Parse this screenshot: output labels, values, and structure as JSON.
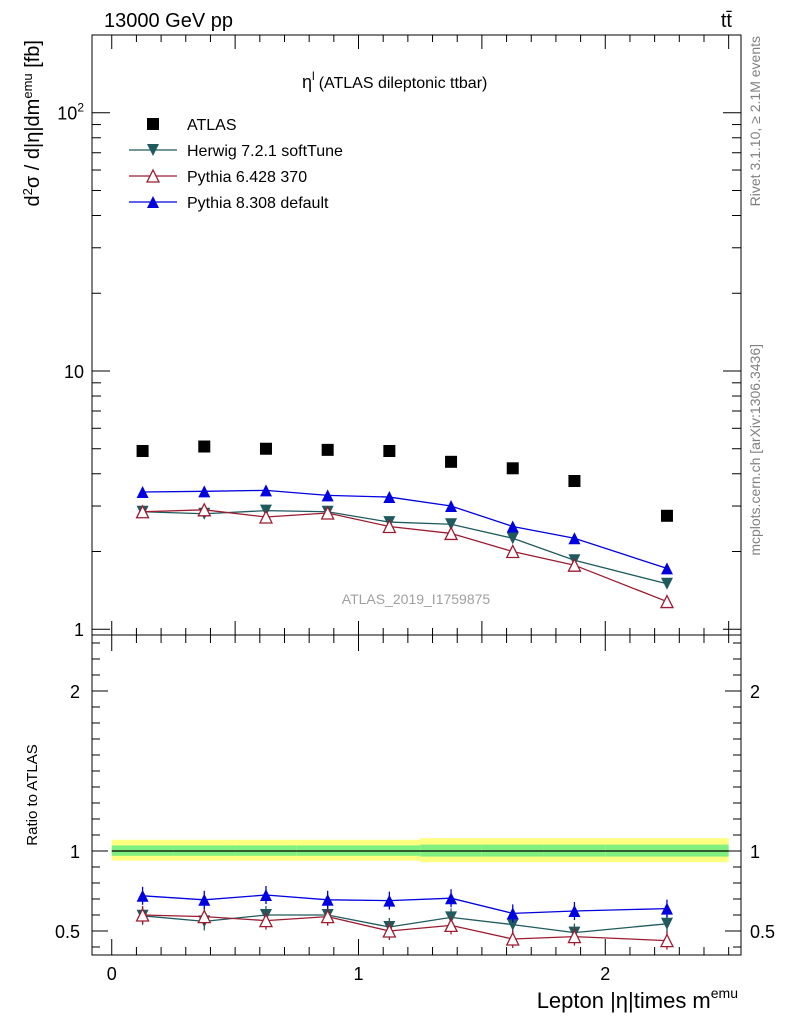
{
  "header": {
    "left": "13000 GeV pp",
    "right": "tt̄"
  },
  "side_labels": {
    "top": "Rivet 3.1.10, ≥ 2.1M events",
    "bottom": "mcplots.cern.ch [arXiv:1306.3436]"
  },
  "watermark": "ATLAS_2019_I1759875",
  "colors": {
    "data": "#000000",
    "herwig": "#1f5a5e",
    "pythia6": "#9b1c31",
    "pythia8": "#0000e0",
    "band_outer": "#ffff80",
    "band_inner": "#7ff07f"
  },
  "chart_data": [
    {
      "type": "line",
      "title": "η^l (ATLAS dileptonic ttbar)",
      "title_main": "η",
      "title_sup": "l",
      "title_rest": "(ATLAS dileptonic ttbar)",
      "ylabel": "d²σ / d|η|dm^emu [fb]",
      "yscale": "log",
      "ylim": [
        0.95,
        200
      ],
      "xlim": [
        -0.08,
        2.55
      ],
      "ytick_labels": [
        "1",
        "10",
        "10²"
      ],
      "x": [
        0.125,
        0.375,
        0.625,
        0.875,
        1.125,
        1.375,
        1.625,
        1.875,
        2.25
      ],
      "series": [
        {
          "name": "ATLAS",
          "style": "data",
          "values": [
            4.9,
            5.1,
            5.0,
            4.95,
            4.9,
            4.45,
            4.2,
            3.75,
            2.75
          ]
        },
        {
          "name": "Herwig 7.2.1 softTune",
          "style": "herwig",
          "values": [
            2.85,
            2.8,
            2.88,
            2.85,
            2.6,
            2.55,
            2.25,
            1.85,
            1.5
          ]
        },
        {
          "name": "Pythia 6.428 370",
          "style": "pythia6",
          "values": [
            2.85,
            2.9,
            2.72,
            2.82,
            2.5,
            2.35,
            2.0,
            1.77,
            1.28
          ]
        },
        {
          "name": "Pythia 8.308 default",
          "style": "pythia8",
          "values": [
            3.4,
            3.42,
            3.45,
            3.3,
            3.25,
            3.0,
            2.5,
            2.25,
            1.72
          ]
        }
      ]
    },
    {
      "type": "line",
      "ylabel": "Ratio to ATLAS",
      "xlabel": "Lepton |η|times m^emu",
      "xlabel_main": "Lepton |η|times m",
      "xlabel_sup": "emu",
      "ylim": [
        0.35,
        2.35
      ],
      "xlim": [
        -0.08,
        2.55
      ],
      "x_ticks": [
        0,
        1,
        2
      ],
      "y_ticks": [
        0.5,
        1,
        2
      ],
      "x": [
        0.125,
        0.375,
        0.625,
        0.875,
        1.125,
        1.375,
        1.625,
        1.875,
        2.25
      ],
      "band": {
        "edges": [
          0,
          0.25,
          0.5,
          0.75,
          1.0,
          1.25,
          1.5,
          1.75,
          2.0,
          2.5
        ],
        "outer_lo": [
          0.94,
          0.94,
          0.94,
          0.94,
          0.94,
          0.93,
          0.93,
          0.93,
          0.93
        ],
        "outer_hi": [
          1.07,
          1.07,
          1.07,
          1.07,
          1.07,
          1.08,
          1.08,
          1.08,
          1.08
        ],
        "inner_lo": [
          0.97,
          0.97,
          0.97,
          0.97,
          0.97,
          0.965,
          0.965,
          0.965,
          0.965
        ],
        "inner_hi": [
          1.035,
          1.035,
          1.035,
          1.035,
          1.035,
          1.04,
          1.04,
          1.04,
          1.04
        ]
      },
      "series": [
        {
          "name": "Herwig 7.2.1 softTune",
          "style": "herwig",
          "values": [
            0.595,
            0.56,
            0.6,
            0.6,
            0.525,
            0.585,
            0.54,
            0.49,
            0.545
          ]
        },
        {
          "name": "Pythia 6.428 370",
          "style": "pythia6",
          "values": [
            0.6,
            0.59,
            0.565,
            0.59,
            0.5,
            0.535,
            0.45,
            0.465,
            0.44
          ]
        },
        {
          "name": "Pythia 8.308 default",
          "style": "pythia8",
          "values": [
            0.72,
            0.695,
            0.725,
            0.695,
            0.69,
            0.705,
            0.61,
            0.625,
            0.64
          ]
        }
      ]
    }
  ]
}
